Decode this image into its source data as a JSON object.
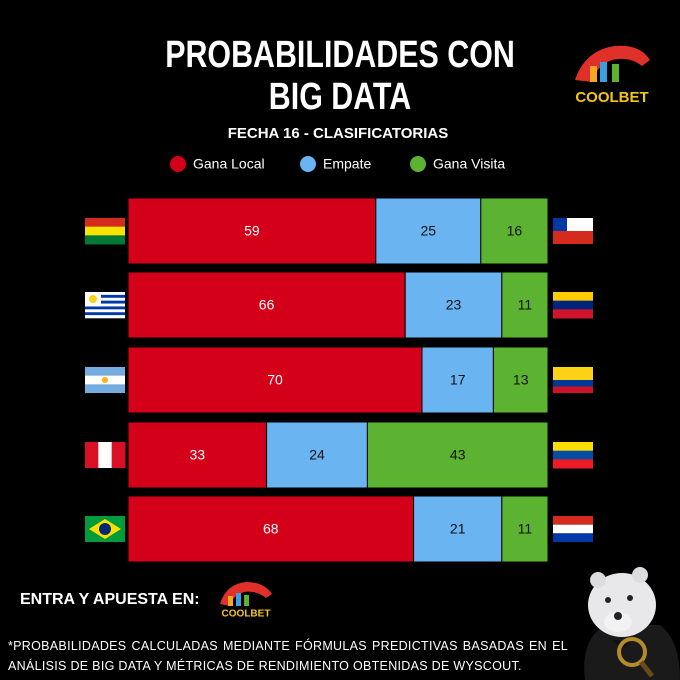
{
  "chart_data": {
    "type": "bar",
    "orientation": "horizontal",
    "stacked": true,
    "title": "PROBABILIDADES CON BIG DATA",
    "subtitle": "FECHA 16 - CLASIFICATORIAS",
    "categories": [
      null,
      null,
      null,
      null,
      null
    ],
    "series": [
      {
        "name": "Gana Local",
        "color": "#d4001a",
        "values": [
          59,
          66,
          70,
          33,
          68
        ]
      },
      {
        "name": "Empate",
        "color": "#6ab4f2",
        "values": [
          25,
          23,
          17,
          24,
          21
        ]
      },
      {
        "name": "Gana Visita",
        "color": "#5cb331",
        "values": [
          16,
          11,
          13,
          43,
          11
        ]
      }
    ]
  },
  "logo": "COOLBET",
  "cta": "ENTRA Y APUESTA EN:",
  "footnote": "*PROBABILIDADES CALCULADAS MEDIANTE FÓRMULAS PREDICTIVAS BASADAS EN EL ANÁLISIS DE BIG DATA Y MÉTRICAS DE RENDIMIENTO OBTENIDAS DE WYSCOUT."
}
